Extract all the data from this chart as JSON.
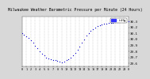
{
  "title": "Milwaukee Weather Barometric Pressure per Minute (24 Hours)",
  "title_fontsize": 3.5,
  "background_color": "#d8d8d8",
  "plot_bg_color": "#ffffff",
  "dot_color": "#0000cc",
  "dot_size": 0.8,
  "legend_label": "inHg",
  "legend_color": "#3333ff",
  "xlim": [
    0,
    1440
  ],
  "ylim": [
    29.55,
    30.38
  ],
  "yticks": [
    29.6,
    29.7,
    29.8,
    29.9,
    30.0,
    30.1,
    30.2,
    30.3
  ],
  "ytick_fontsize": 3.0,
  "xtick_fontsize": 2.5,
  "xticks": [
    0,
    60,
    120,
    180,
    240,
    300,
    360,
    420,
    480,
    540,
    600,
    660,
    720,
    780,
    840,
    900,
    960,
    1020,
    1080,
    1140,
    1200,
    1260,
    1320,
    1380,
    1440
  ],
  "xtick_labels": [
    "0",
    "1",
    "2",
    "3",
    "4",
    "5",
    "6",
    "7",
    "8",
    "9",
    "10",
    "11",
    "12",
    "13",
    "14",
    "15",
    "16",
    "17",
    "18",
    "19",
    "20",
    "21",
    "22",
    "23",
    "0"
  ],
  "grid_color": "#999999",
  "data_x": [
    0,
    30,
    60,
    90,
    120,
    150,
    180,
    210,
    240,
    270,
    300,
    330,
    360,
    390,
    420,
    450,
    480,
    510,
    540,
    570,
    600,
    630,
    660,
    690,
    720,
    750,
    780,
    810,
    840,
    870,
    900,
    930,
    960,
    990,
    1020,
    1050,
    1080,
    1110,
    1140,
    1170,
    1200,
    1230,
    1260,
    1290,
    1320,
    1350,
    1380,
    1410,
    1440
  ],
  "data_y": [
    30.1,
    30.08,
    30.05,
    30.02,
    29.98,
    29.94,
    29.9,
    29.85,
    29.8,
    29.76,
    29.73,
    29.7,
    29.68,
    29.67,
    29.66,
    29.65,
    29.64,
    29.63,
    29.62,
    29.63,
    29.65,
    29.67,
    29.7,
    29.74,
    29.78,
    29.83,
    29.88,
    29.94,
    30.0,
    30.06,
    30.1,
    30.14,
    30.17,
    30.2,
    30.22,
    30.24,
    30.25,
    30.26,
    30.27,
    30.28,
    30.28,
    30.28,
    30.29,
    30.29,
    30.3,
    30.3,
    30.3,
    30.3,
    30.3
  ]
}
